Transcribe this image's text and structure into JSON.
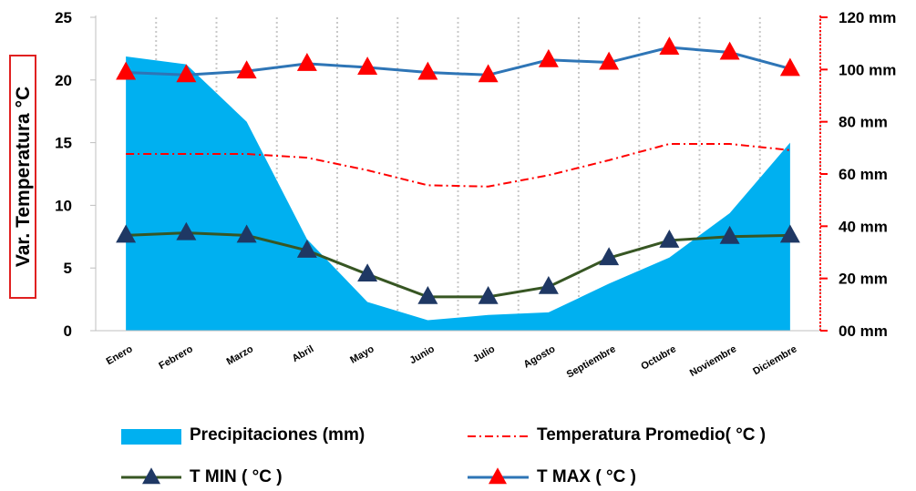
{
  "chart_data": {
    "type": "combo",
    "title": "",
    "ylabel": "Var. Temperatura °C",
    "y2label": "",
    "categories": [
      "Enero",
      "Febrero",
      "Marzo",
      "Abril",
      "Mayo",
      "Junio",
      "Julio",
      "Agosto",
      "Septiembre",
      "Octubre",
      "Noviembre",
      "Diciembre"
    ],
    "ylim": [
      0,
      25
    ],
    "yticks": [
      "0",
      "5",
      "10",
      "15",
      "20",
      "25"
    ],
    "y2lim": [
      0,
      120
    ],
    "y2ticks": [
      "00 mm",
      "20 mm",
      "40 mm",
      "60 mm",
      "80 mm",
      "100 mm",
      "120 mm"
    ],
    "grid": "vertical dotted",
    "legend_position": "bottom",
    "series": [
      {
        "name": "Precipitaciones (mm)",
        "kind": "area",
        "axis": "right",
        "color": "#00b0f0",
        "values": [
          105,
          102,
          80,
          35,
          11,
          4,
          6,
          7,
          18,
          28,
          45,
          72
        ]
      },
      {
        "name": "Temperatura Promedio( °C )",
        "kind": "line-dashdot",
        "axis": "left",
        "color": "#ff0000",
        "values": [
          14.1,
          14.1,
          14.1,
          13.8,
          12.8,
          11.6,
          11.5,
          12.4,
          13.6,
          14.9,
          14.9,
          14.4
        ]
      },
      {
        "name": "T MIN ( °C )",
        "kind": "line-marker",
        "marker": "triangle",
        "axis": "left",
        "color": "#375623",
        "marker_color": "#1f3864",
        "values": [
          7.6,
          7.8,
          7.6,
          6.4,
          4.5,
          2.7,
          2.7,
          3.5,
          5.8,
          7.2,
          7.5,
          7.6
        ]
      },
      {
        "name": "T MAX ( °C )",
        "kind": "line-marker",
        "marker": "triangle",
        "axis": "left",
        "color": "#2e75b6",
        "marker_color": "#ff0000",
        "values": [
          20.6,
          20.4,
          20.7,
          21.3,
          21.0,
          20.6,
          20.4,
          21.6,
          21.4,
          22.6,
          22.2,
          20.9
        ]
      }
    ]
  }
}
